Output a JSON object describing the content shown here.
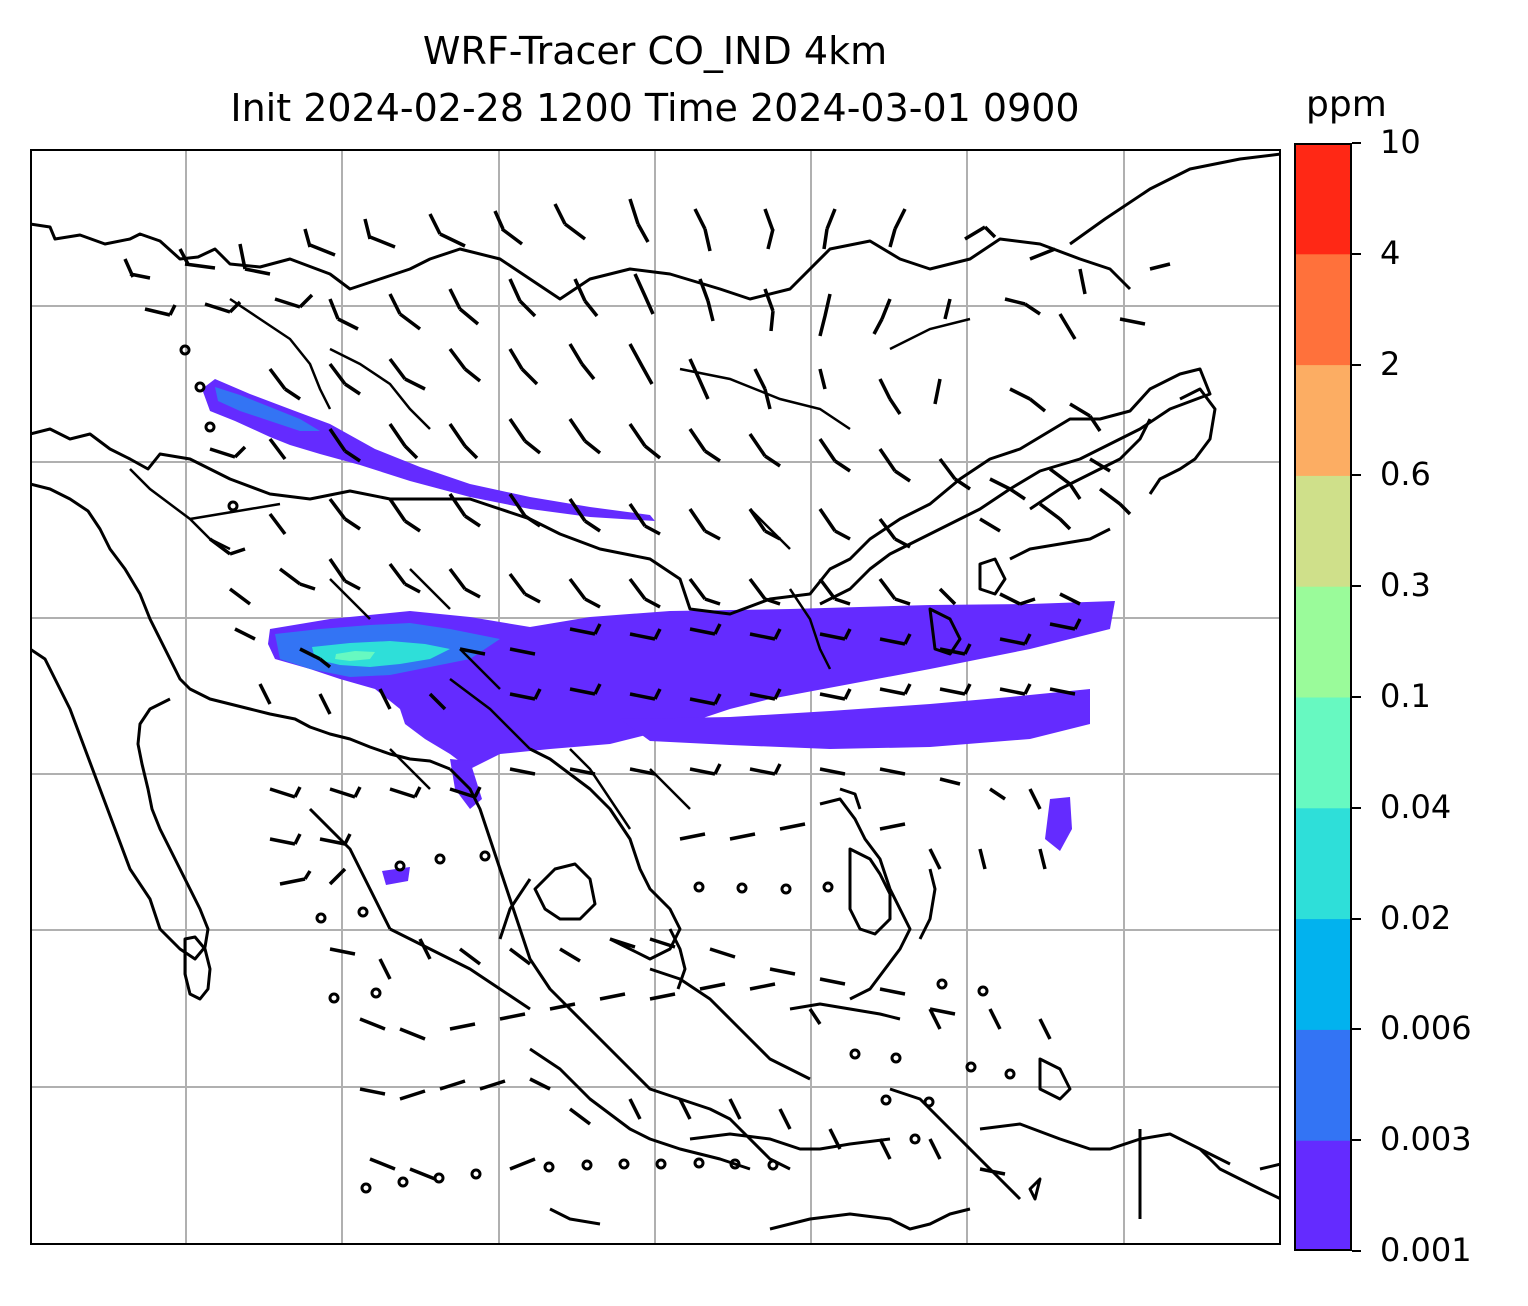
{
  "title": {
    "line1": "WRF-Tracer CO_IND 4km",
    "line2": "Init 2024-02-28 1200 Time 2024-03-01 0900"
  },
  "colorbar": {
    "unit": "ppm",
    "levels": [
      "0.001",
      "0.003",
      "0.006",
      "0.02",
      "0.04",
      "0.1",
      "0.3",
      "0.6",
      "2",
      "4",
      "10"
    ],
    "colors": [
      "#642bff",
      "#3374f4",
      "#02b2ee",
      "#2edfd9",
      "#67f9c1",
      "#9afb9a",
      "#cfe08a",
      "#fcad63",
      "#ff713b",
      "#ff2815"
    ]
  },
  "map": {
    "features": [
      "coastlines",
      "country-borders",
      "lat-lon-gridlines",
      "wind-barbs",
      "co-tracer-shading"
    ],
    "gridline_color": "#b0b0b0"
  }
}
